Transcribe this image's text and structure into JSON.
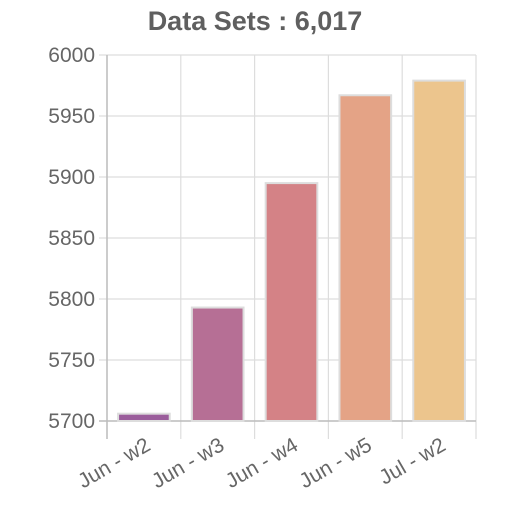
{
  "chart_data": {
    "type": "bar",
    "title": "Data Sets : 6,017",
    "categories": [
      "Jun - w2",
      "Jun - w3",
      "Jun - w4",
      "Jun - w5",
      "Jul - w2"
    ],
    "values": [
      5706,
      5793,
      5895,
      5967,
      5979
    ],
    "colors": [
      "#9a5d9b",
      "#b66f95",
      "#d48286",
      "#e4a386",
      "#ecc58d"
    ],
    "bar_stroke": "#dddddd",
    "ylim": [
      5700,
      6000
    ],
    "yticks": [
      5700,
      5750,
      5800,
      5850,
      5900,
      5950,
      6000
    ],
    "xlabel": "",
    "ylabel": "",
    "grid": true,
    "legend": "none",
    "grid_color": "#dddddd",
    "axis_color": "#bdbdbd"
  }
}
